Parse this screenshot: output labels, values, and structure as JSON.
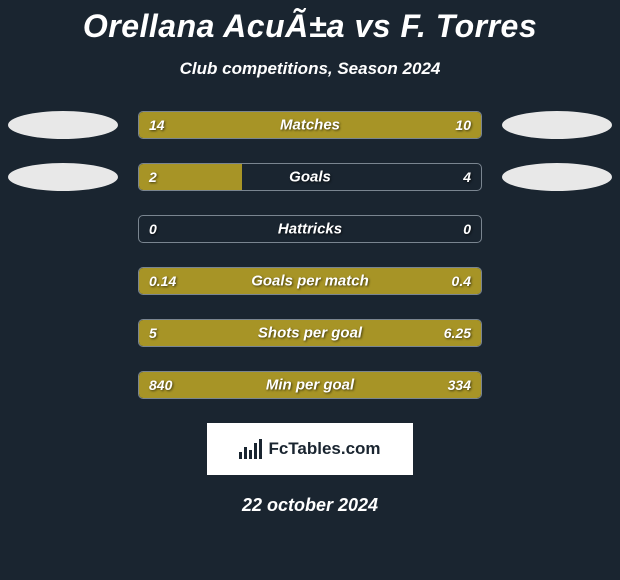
{
  "title": "Orellana AcuÃ±a vs F. Torres",
  "subtitle": "Club competitions, Season 2024",
  "colors": {
    "background": "#1a2530",
    "bar_fill": "#a79426",
    "bar_border": "#7a8590",
    "text": "#ffffff",
    "ellipse": "#e8e8e8",
    "logo_bg": "#ffffff",
    "logo_fg": "#1a2530"
  },
  "bar_track_width": 344,
  "stats": [
    {
      "label": "Matches",
      "left_value": "14",
      "right_value": "10",
      "left_pct": 100,
      "right_pct": 0,
      "show_ellipses": true
    },
    {
      "label": "Goals",
      "left_value": "2",
      "right_value": "4",
      "left_pct": 30,
      "right_pct": 0,
      "show_ellipses": true
    },
    {
      "label": "Hattricks",
      "left_value": "0",
      "right_value": "0",
      "left_pct": 0,
      "right_pct": 0,
      "show_ellipses": false
    },
    {
      "label": "Goals per match",
      "left_value": "0.14",
      "right_value": "0.4",
      "left_pct": 100,
      "right_pct": 0,
      "show_ellipses": false
    },
    {
      "label": "Shots per goal",
      "left_value": "5",
      "right_value": "6.25",
      "left_pct": 100,
      "right_pct": 0,
      "show_ellipses": false
    },
    {
      "label": "Min per goal",
      "left_value": "840",
      "right_value": "334",
      "left_pct": 68,
      "right_pct": 32,
      "show_ellipses": false
    }
  ],
  "logo_text": "FcTables.com",
  "date": "22 october 2024"
}
